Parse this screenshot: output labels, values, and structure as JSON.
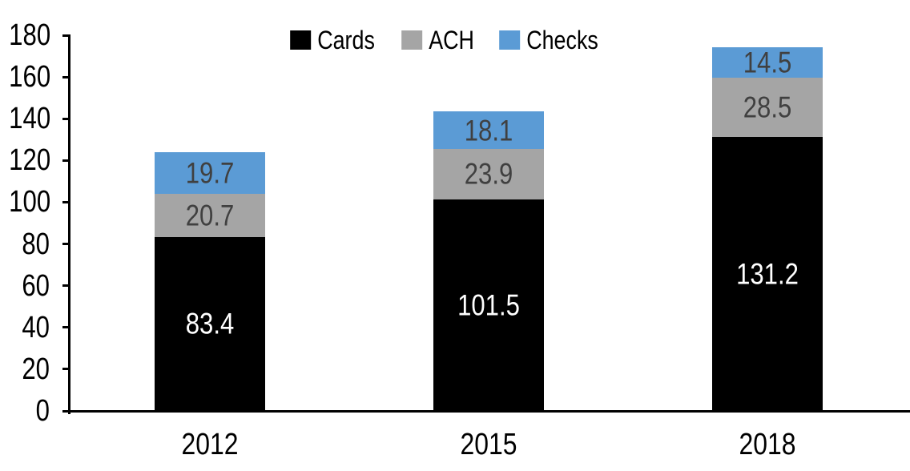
{
  "chart_data": {
    "type": "bar",
    "stacked": true,
    "title": "",
    "xlabel": "",
    "ylabel": "",
    "categories": [
      "2012",
      "2015",
      "2018"
    ],
    "series": [
      {
        "name": "Cards",
        "color": "#000000",
        "label_color": "#ffffff",
        "values": [
          83.4,
          101.5,
          131.2
        ]
      },
      {
        "name": "ACH",
        "color": "#a5a5a5",
        "label_color": "#404040",
        "values": [
          20.7,
          23.9,
          28.5
        ]
      },
      {
        "name": "Checks",
        "color": "#5b9bd5",
        "label_color": "#404040",
        "values": [
          19.7,
          18.1,
          14.5
        ]
      }
    ],
    "totals": [
      123.8,
      143.5,
      174.2
    ],
    "ylim": [
      0,
      180
    ],
    "yticks": [
      0,
      20,
      40,
      60,
      80,
      100,
      120,
      140,
      160,
      180
    ],
    "legend_position": "top-center",
    "legend_labels": [
      "Cards",
      "ACH",
      "Checks"
    ],
    "grid": false,
    "data_labels": true,
    "axis_color": "#000000",
    "background_color": "#ffffff"
  }
}
